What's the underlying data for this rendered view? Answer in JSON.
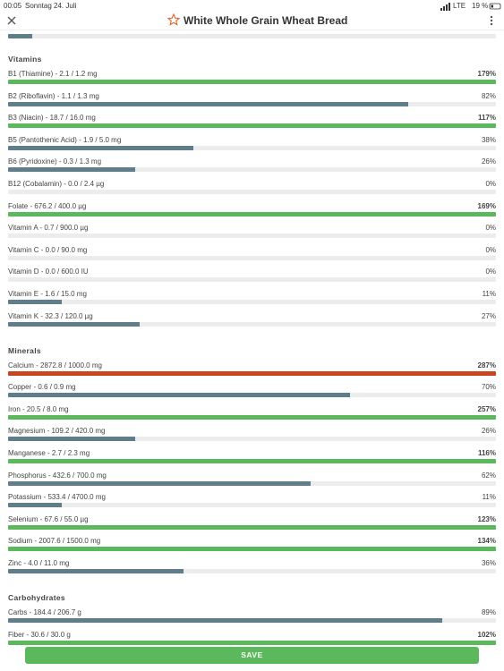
{
  "status_bar": {
    "time": "00:05",
    "date": "Sonntag 24. Juli",
    "network": "LTE",
    "battery": "19 %"
  },
  "header": {
    "title": "White Whole Grain Wheat Bread"
  },
  "top_bar": {
    "percent": 5,
    "color": "#607d8b"
  },
  "sections": [
    {
      "title": "Vitamins",
      "items": [
        {
          "label": "B1 (Thiamine) - 2.1 / 1.2 mg",
          "percent": 179,
          "percent_label": "179%",
          "color": "#5cb85c"
        },
        {
          "label": "B2 (Riboflavin) - 1.1 / 1.3 mg",
          "percent": 82,
          "percent_label": "82%",
          "color": "#607d8b"
        },
        {
          "label": "B3 (Niacin) - 18.7 / 16.0 mg",
          "percent": 117,
          "percent_label": "117%",
          "color": "#5cb85c"
        },
        {
          "label": "B5 (Pantothenic Acid) - 1.9 / 5.0 mg",
          "percent": 38,
          "percent_label": "38%",
          "color": "#607d8b"
        },
        {
          "label": "B6 (Pyridoxine) - 0.3 / 1.3 mg",
          "percent": 26,
          "percent_label": "26%",
          "color": "#607d8b"
        },
        {
          "label": "B12 (Cobalamin) - 0.0 / 2.4 µg",
          "percent": 0,
          "percent_label": "0%",
          "color": "#607d8b"
        },
        {
          "label": "Folate - 676.2 / 400.0 µg",
          "percent": 169,
          "percent_label": "169%",
          "color": "#5cb85c"
        },
        {
          "label": "Vitamin A - 0.7 / 900.0 µg",
          "percent": 0,
          "percent_label": "0%",
          "color": "#607d8b"
        },
        {
          "label": "Vitamin C - 0.0 / 90.0 mg",
          "percent": 0,
          "percent_label": "0%",
          "color": "#607d8b"
        },
        {
          "label": "Vitamin D - 0.0 / 600.0 IU",
          "percent": 0,
          "percent_label": "0%",
          "color": "#607d8b"
        },
        {
          "label": "Vitamin E - 1.6 / 15.0 mg",
          "percent": 11,
          "percent_label": "11%",
          "color": "#607d8b"
        },
        {
          "label": "Vitamin K - 32.3 / 120.0 µg",
          "percent": 27,
          "percent_label": "27%",
          "color": "#607d8b"
        }
      ]
    },
    {
      "title": "Minerals",
      "items": [
        {
          "label": "Calcium - 2872.8 / 1000.0 mg",
          "percent": 287,
          "percent_label": "287%",
          "color": "#c8461e"
        },
        {
          "label": "Copper - 0.6 / 0.9 mg",
          "percent": 70,
          "percent_label": "70%",
          "color": "#607d8b"
        },
        {
          "label": "Iron - 20.5 / 8.0 mg",
          "percent": 257,
          "percent_label": "257%",
          "color": "#5cb85c"
        },
        {
          "label": "Magnesium - 109.2 / 420.0 mg",
          "percent": 26,
          "percent_label": "26%",
          "color": "#607d8b"
        },
        {
          "label": "Manganese - 2.7 / 2.3 mg",
          "percent": 116,
          "percent_label": "116%",
          "color": "#5cb85c"
        },
        {
          "label": "Phosphorus - 432.6 / 700.0 mg",
          "percent": 62,
          "percent_label": "62%",
          "color": "#607d8b"
        },
        {
          "label": "Potassium - 533.4 / 4700.0 mg",
          "percent": 11,
          "percent_label": "11%",
          "color": "#607d8b"
        },
        {
          "label": "Selenium - 67.6 / 55.0 µg",
          "percent": 123,
          "percent_label": "123%",
          "color": "#5cb85c"
        },
        {
          "label": "Sodium - 2007.6 / 1500.0 mg",
          "percent": 134,
          "percent_label": "134%",
          "color": "#5cb85c"
        },
        {
          "label": "Zinc - 4.0 / 11.0 mg",
          "percent": 36,
          "percent_label": "36%",
          "color": "#607d8b"
        }
      ]
    },
    {
      "title": "Carbohydrates",
      "items": [
        {
          "label": "Carbs - 184.4 / 206.7 g",
          "percent": 89,
          "percent_label": "89%",
          "color": "#607d8b"
        },
        {
          "label": "Fiber - 30.6 / 30.0 g",
          "percent": 102,
          "percent_label": "102%",
          "color": "#5cb85c"
        }
      ]
    }
  ],
  "save_button": "SAVE"
}
